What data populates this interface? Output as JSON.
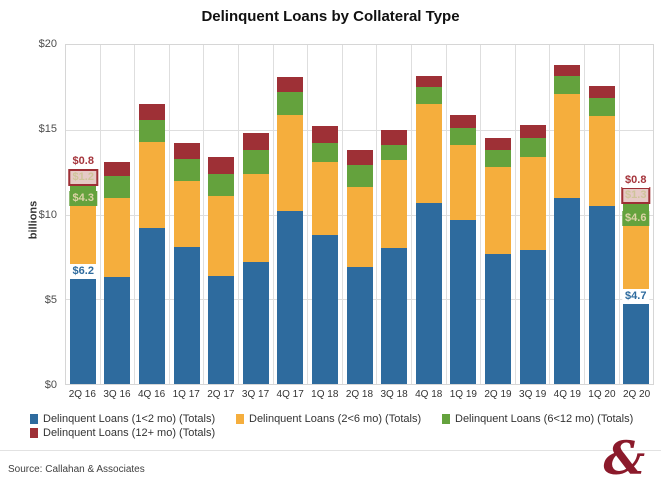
{
  "title": "Delinquent Loans by Collateral Type",
  "y_axis": {
    "label": "billions",
    "ticks": [
      "$20",
      "$15",
      "$10",
      "$5",
      "$0"
    ]
  },
  "footer": {
    "source": "Source: Callahan & Associates",
    "logo_glyph": "&"
  },
  "legend": [
    {
      "label": "Delinquent Loans (1<2 mo) (Totals)",
      "color": "#2E6B9E"
    },
    {
      "label": "Delinquent Loans (2<6 mo) (Totals)",
      "color": "#F5AE3D"
    },
    {
      "label": "Delinquent Loans (6<12 mo) (Totals)",
      "color": "#64A23D"
    },
    {
      "label": "Delinquent Loans (12+ mo) (Totals)",
      "color": "#9E3036"
    }
  ],
  "chart_data": {
    "type": "bar",
    "stacked": true,
    "title": "Delinquent Loans by Collateral Type",
    "xlabel": "",
    "ylabel": "billions",
    "ylim": [
      0,
      20
    ],
    "grid": true,
    "legend_position": "bottom",
    "categories": [
      "2Q 16",
      "3Q 16",
      "4Q 16",
      "1Q 17",
      "2Q 17",
      "3Q 17",
      "4Q 17",
      "1Q 18",
      "2Q 18",
      "3Q 18",
      "4Q 18",
      "1Q 19",
      "2Q 19",
      "3Q 19",
      "4Q 19",
      "1Q 20",
      "2Q 20"
    ],
    "series": [
      {
        "name": "Delinquent Loans (1<2 mo) (Totals)",
        "color": "#2E6B9E",
        "values": [
          6.2,
          6.3,
          9.2,
          8.1,
          6.4,
          7.2,
          10.2,
          8.8,
          6.9,
          8.0,
          10.7,
          9.7,
          7.7,
          7.9,
          11.0,
          10.5,
          4.7
        ]
      },
      {
        "name": "Delinquent Loans (2<6 mo) (Totals)",
        "color": "#F5AE3D",
        "values": [
          4.3,
          4.7,
          5.1,
          3.9,
          4.7,
          5.2,
          5.7,
          4.3,
          4.7,
          5.2,
          5.8,
          4.4,
          5.1,
          5.5,
          6.1,
          5.3,
          4.6
        ]
      },
      {
        "name": "Delinquent Loans (6<12 mo) (Totals)",
        "color": "#64A23D",
        "values": [
          1.2,
          1.3,
          1.3,
          1.3,
          1.3,
          1.4,
          1.3,
          1.1,
          1.3,
          0.9,
          1.0,
          1.0,
          1.0,
          1.1,
          1.1,
          1.1,
          1.3
        ]
      },
      {
        "name": "Delinquent Loans (12+ mo) (Totals)",
        "color": "#9E3036",
        "values": [
          0.8,
          0.8,
          0.9,
          0.9,
          1.0,
          1.0,
          0.9,
          1.0,
          0.9,
          0.9,
          0.7,
          0.8,
          0.7,
          0.8,
          0.6,
          0.7,
          0.8
        ]
      }
    ],
    "annotations": [
      {
        "bar": 0,
        "labels": [
          {
            "text": "$6.2",
            "style": "blue"
          },
          {
            "text": "$4.3",
            "style": "green"
          },
          {
            "text": "$1.2",
            "style": "red-box"
          },
          {
            "text": "$0.8",
            "style": "red-text"
          }
        ]
      },
      {
        "bar": 16,
        "labels": [
          {
            "text": "$4.7",
            "style": "blue"
          },
          {
            "text": "$4.6",
            "style": "green"
          },
          {
            "text": "$1.3",
            "style": "red-box"
          },
          {
            "text": "$0.8",
            "style": "red-text"
          }
        ]
      }
    ]
  }
}
